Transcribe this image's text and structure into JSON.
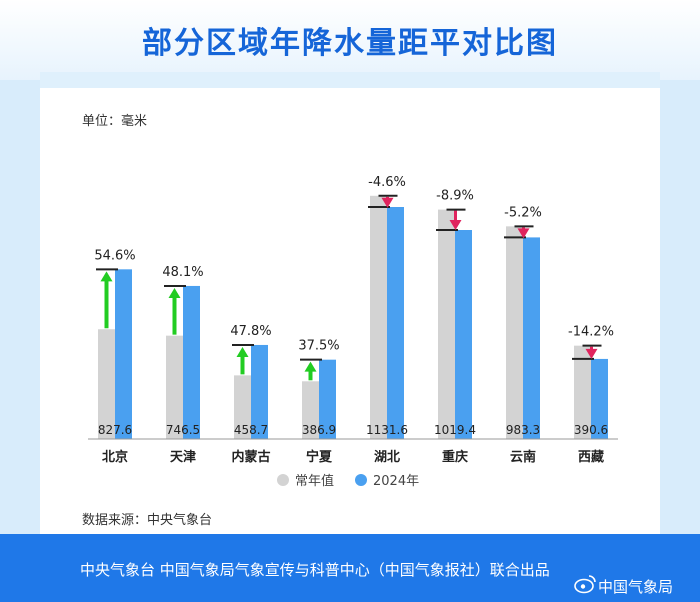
{
  "header": {
    "title": "部分区域年降水量距平对比图"
  },
  "unit_label": "单位：毫米",
  "source_label": "数据来源：中央气象台",
  "footer": {
    "text": "中央气象台 中国气象局气象宣传与科普中心（中国气象报社）联合出品",
    "watermark": "中国气象局"
  },
  "colors": {
    "normal": "#d3d3d3",
    "actual": "#4aa0f0",
    "increase_arrow": "#22cc22",
    "decrease_arrow": "#e0245e",
    "title": "#1565d8",
    "footer_bg": "#1f78e8"
  },
  "chart_data": {
    "type": "bar",
    "categories": [
      "北京",
      "天津",
      "内蒙古",
      "宁夏",
      "湖北",
      "重庆",
      "云南",
      "西藏"
    ],
    "series": [
      {
        "name": "常年值",
        "values": [
          535.3,
          504.1,
          310.4,
          281.4,
          1186.2,
          1119.0,
          1037.2,
          455.2
        ]
      },
      {
        "name": "2024年",
        "values": [
          827.6,
          746.5,
          458.7,
          386.9,
          1131.6,
          1019.4,
          983.3,
          390.6
        ]
      }
    ],
    "labels_2024": [
      "827.6",
      "746.5",
      "458.7",
      "386.9",
      "1131.6",
      "1019.4",
      "983.3",
      "390.6"
    ],
    "anomaly_labels": [
      "54.6%",
      "48.1%",
      "47.8%",
      "37.5%",
      "-4.6%",
      "-8.9%",
      "-5.2%",
      "-14.2%"
    ],
    "legend": [
      "常年值",
      "2024年"
    ],
    "legend_position": "bottom",
    "ylim": [
      0,
      1300
    ],
    "grid": false
  }
}
